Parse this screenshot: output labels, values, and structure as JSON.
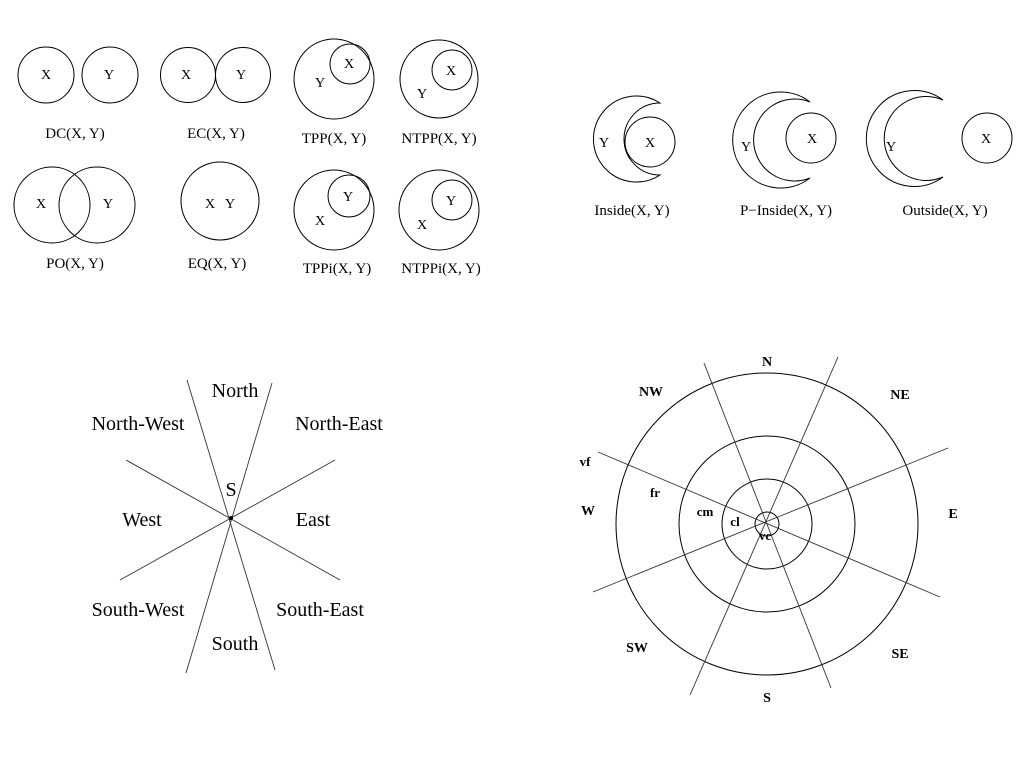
{
  "rcc8": {
    "items": [
      {
        "caption": "DC(X, Y)",
        "x_label": "X",
        "y_label": "Y"
      },
      {
        "caption": "EC(X, Y)",
        "x_label": "X",
        "y_label": "Y"
      },
      {
        "caption": "TPP(X, Y)",
        "x_label": "X",
        "y_label": "Y"
      },
      {
        "caption": "NTPP(X, Y)",
        "x_label": "X",
        "y_label": "Y"
      },
      {
        "caption": "PO(X, Y)",
        "x_label": "X",
        "y_label": "Y"
      },
      {
        "caption": "EQ(X, Y)",
        "x_label": "X",
        "y_label": "Y"
      },
      {
        "caption": "TPPi(X, Y)",
        "x_label": "X",
        "y_label": "Y"
      },
      {
        "caption": "NTPPi(X, Y)",
        "x_label": "X",
        "y_label": "Y"
      }
    ]
  },
  "concave": {
    "items": [
      {
        "caption": "Inside(X, Y)",
        "x_label": "X",
        "y_label": "Y"
      },
      {
        "caption": "P−Inside(X, Y)",
        "x_label": "X",
        "y_label": "Y"
      },
      {
        "caption": "Outside(X, Y)",
        "x_label": "X",
        "y_label": "Y"
      }
    ]
  },
  "cone_directions": {
    "center_label": "S",
    "north": "North",
    "north_east": "North-East",
    "east": "East",
    "south_east": "South-East",
    "south": "South",
    "south_west": "South-West",
    "west": "West",
    "north_west": "North-West"
  },
  "distance_directions": {
    "n": "N",
    "ne": "NE",
    "e": "E",
    "se": "SE",
    "s": "S",
    "sw": "SW",
    "w": "W",
    "nw": "NW",
    "ring_vc": "vc",
    "ring_cl": "cl",
    "ring_cm": "cm",
    "ring_fr": "fr",
    "ring_vf": "vf"
  }
}
